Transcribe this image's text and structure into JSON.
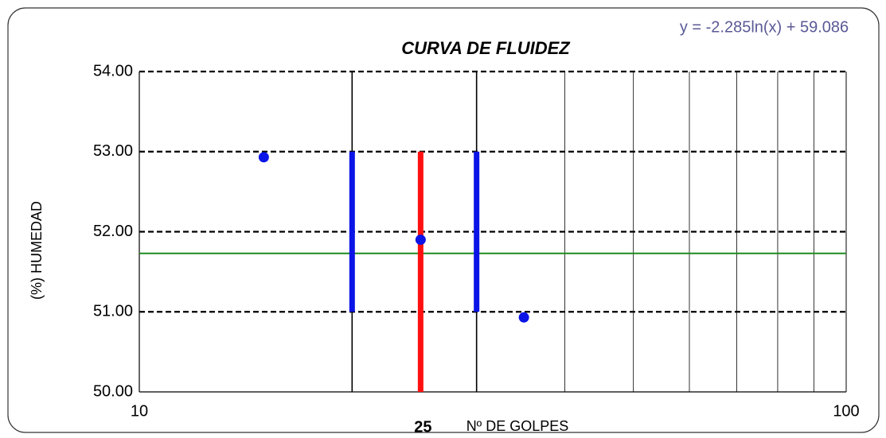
{
  "chart_data": {
    "type": "scatter",
    "title": "CURVA DE FLUIDEZ",
    "equation": "y = -2.285ln(x) + 59.086",
    "x_label": "Nº DE GOLPES",
    "y_label": "(%) HUMEDAD",
    "x_scale": "log",
    "xlim": [
      10,
      100
    ],
    "xticks": [
      10,
      100
    ],
    "highlight_x": 25,
    "ylim": [
      50,
      54
    ],
    "yticks": [
      {
        "value": 50,
        "label": "50.00"
      },
      {
        "value": 51,
        "label": "51.00"
      },
      {
        "value": 52,
        "label": "52.00"
      },
      {
        "value": 53,
        "label": "53.00"
      },
      {
        "value": 54,
        "label": "54.00"
      }
    ],
    "x_grid": [
      20,
      30,
      40,
      50,
      60,
      70,
      80,
      90
    ],
    "series": [
      {
        "color": "#0a14e6",
        "x": [
          15,
          25,
          35
        ],
        "values": [
          52.93,
          51.9,
          50.93
        ]
      }
    ],
    "hline": {
      "value": 51.73,
      "color": "#1e8a1e"
    },
    "vlines": [
      {
        "x": 20,
        "y": [
          51,
          53
        ],
        "color": "#0a14e6"
      },
      {
        "x": 30,
        "y": [
          51,
          53
        ],
        "color": "#0a14e6"
      },
      {
        "x": 25,
        "y": [
          50,
          53
        ],
        "color": "#ff1010"
      }
    ]
  }
}
